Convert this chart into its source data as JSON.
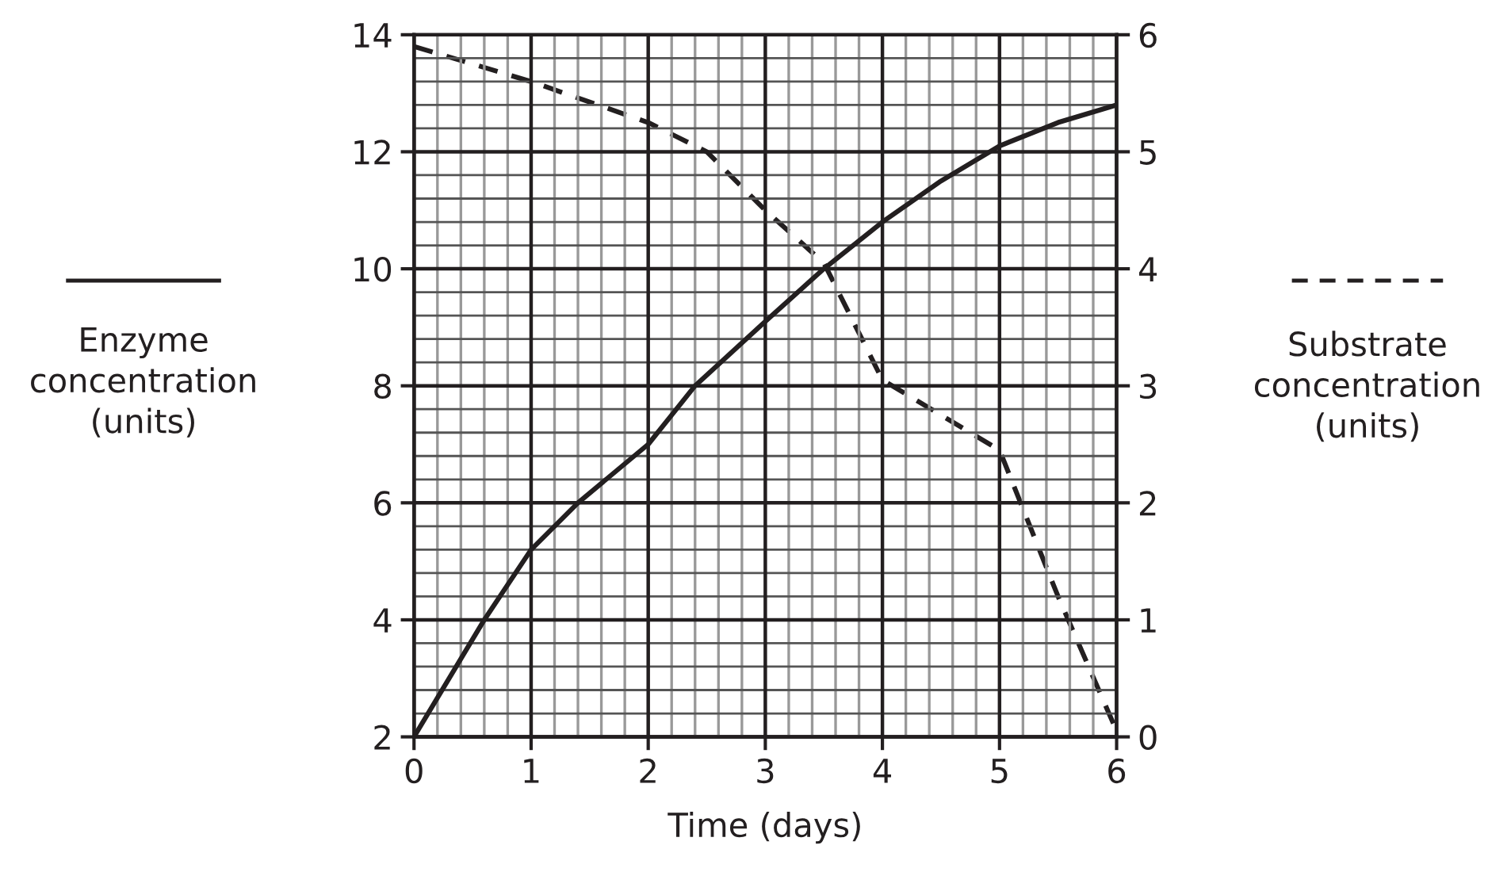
{
  "chart_data": {
    "type": "line",
    "xlabel": "Time (days)",
    "ylabel": "Enzyme\nconcentration\n(units)",
    "y2label": "Substrate\nconcentration\n(units)",
    "grid": true,
    "xlim": [
      0,
      6
    ],
    "xticks": [
      0,
      1,
      2,
      3,
      4,
      5,
      6
    ],
    "ylim": [
      2,
      14
    ],
    "yticks": [
      2,
      4,
      6,
      8,
      10,
      12,
      14
    ],
    "y2lim": [
      0,
      6
    ],
    "y2ticks": [
      0,
      1,
      2,
      3,
      4,
      5,
      6
    ],
    "series": [
      {
        "color": "#231f20",
        "line_style": "solid",
        "x": [
          0,
          0.6,
          1,
          1.4,
          2,
          2.2,
          2.4,
          3,
          3.5,
          4,
          4.5,
          5,
          5.5,
          6
        ],
        "values": [
          2,
          4.0,
          5.2,
          6.0,
          7.0,
          7.5,
          8.0,
          9.1,
          10.0,
          10.8,
          11.5,
          12.1,
          12.5,
          12.8
        ]
      },
      {
        "color": "#231f20",
        "line_style": "dashed",
        "axis": "y2",
        "x": [
          0,
          1,
          2,
          2.5,
          3,
          3.5,
          3.75,
          4,
          4.5,
          5,
          5.5,
          6
        ],
        "values": [
          5.9,
          5.6,
          5.25,
          5.0,
          4.5,
          4.05,
          3.55,
          3.05,
          2.75,
          2.45,
          1.2,
          0.05
        ]
      }
    ]
  }
}
